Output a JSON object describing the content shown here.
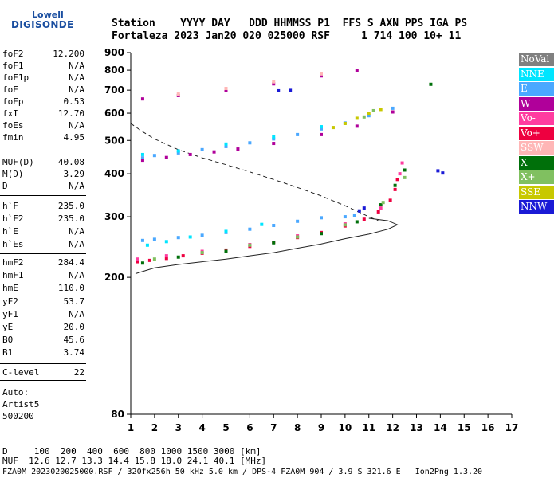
{
  "logo": {
    "line1": "Lowell",
    "line2": "DIGISONDE"
  },
  "header": {
    "line1": "Station    YYYY DAY   DDD HHMMSS P1  FFS S AXN PPS IGA PS",
    "line2": "Fortaleza 2023 Jan20 020 025000 RSF     1 714 100 10+ 11"
  },
  "params_group1": [
    {
      "label": "foF2",
      "value": "12.200"
    },
    {
      "label": "foF1",
      "value": "N/A"
    },
    {
      "label": "foF1p",
      "value": "N/A"
    },
    {
      "label": "foE",
      "value": "N/A"
    },
    {
      "label": "foEp",
      "value": "0.53"
    },
    {
      "label": "fxI",
      "value": "12.70"
    },
    {
      "label": "foEs",
      "value": "N/A"
    },
    {
      "label": "fmin",
      "value": "4.95"
    }
  ],
  "params_group2": [
    {
      "label": "MUF(D)",
      "value": "40.08"
    },
    {
      "label": "M(D)",
      "value": "3.29"
    },
    {
      "label": "D",
      "value": "N/A"
    }
  ],
  "params_group3": [
    {
      "label": "h`F",
      "value": "235.0"
    },
    {
      "label": "h`F2",
      "value": "235.0"
    },
    {
      "label": "h`E",
      "value": "N/A"
    },
    {
      "label": "h`Es",
      "value": "N/A"
    }
  ],
  "params_group4": [
    {
      "label": "hmF2",
      "value": "284.4"
    },
    {
      "label": "hmF1",
      "value": "N/A"
    },
    {
      "label": "hmE",
      "value": "110.0"
    },
    {
      "label": "yF2",
      "value": "53.7"
    },
    {
      "label": "yF1",
      "value": "N/A"
    },
    {
      "label": "yE",
      "value": "20.0"
    },
    {
      "label": "B0",
      "value": "45.6"
    },
    {
      "label": "B1",
      "value": "3.74"
    }
  ],
  "params_group5": [
    {
      "label": "C-level",
      "value": "22"
    }
  ],
  "autoscaling": {
    "line1": "Auto:",
    "line2": "Artist5",
    "line3": "500200"
  },
  "legend": [
    {
      "label": "NoVal",
      "bg": "#808080",
      "fg": "#ffffff"
    },
    {
      "label": "NNE",
      "bg": "#00e5ff",
      "fg": "#ffffff"
    },
    {
      "label": "E",
      "bg": "#4aa8ff",
      "fg": "#ffffff"
    },
    {
      "label": "W",
      "bg": "#b0009a",
      "fg": "#ffffff"
    },
    {
      "label": "Vo-",
      "bg": "#ff3ca0",
      "fg": "#ffffff"
    },
    {
      "label": "Vo+",
      "bg": "#ee0040",
      "fg": "#ffffff"
    },
    {
      "label": "SSW",
      "bg": "#ffb6b6",
      "fg": "#ffffff"
    },
    {
      "label": "X-",
      "bg": "#00700a",
      "fg": "#ffffff"
    },
    {
      "label": "X+",
      "bg": "#80c060",
      "fg": "#ffffff"
    },
    {
      "label": "SSE",
      "bg": "#c8c800",
      "fg": "#ffffff"
    },
    {
      "label": "NNW",
      "bg": "#1a1ad6",
      "fg": "#ffffff"
    }
  ],
  "footer": {
    "line1": "D     100  200  400  600  800 1000 1500 3000 [km]",
    "line2": "MUF  12.6 12.7 13.3 14.4 15.8 18.0 24.1 40.1 [MHz]",
    "line3": "FZA0M_2023020025000.RSF / 320fx256h 50 kHz 5.0 km / DPS-4 FZA0M 904 / 3.9 S 321.6 E   Ion2Png 1.3.20"
  },
  "chart_data": {
    "type": "scatter",
    "title": "",
    "xlabel": "",
    "ylabel": "",
    "xlim": [
      1,
      17
    ],
    "ylim": [
      80,
      900
    ],
    "x_ticks": [
      1,
      2,
      3,
      4,
      5,
      6,
      7,
      8,
      9,
      10,
      11,
      12,
      13,
      14,
      15,
      16,
      17
    ],
    "y_ticks": [
      80,
      200,
      300,
      400,
      500,
      600,
      700,
      800,
      900
    ],
    "y_scale": "log",
    "series": [
      {
        "color": "#ee0040",
        "points": [
          [
            1.3,
            222
          ],
          [
            1.8,
            224
          ],
          [
            2.5,
            227
          ],
          [
            3.2,
            231
          ],
          [
            4,
            235
          ],
          [
            5,
            240
          ],
          [
            6,
            246
          ],
          [
            7,
            253
          ],
          [
            8,
            261
          ],
          [
            9,
            270
          ],
          [
            10,
            282
          ],
          [
            10.8,
            295
          ],
          [
            11.4,
            310
          ],
          [
            11.9,
            335
          ],
          [
            12.1,
            360
          ],
          [
            12.2,
            385
          ]
        ]
      },
      {
        "color": "#ff3ca0",
        "points": [
          [
            1.3,
            226
          ],
          [
            2.5,
            231
          ],
          [
            4,
            238
          ],
          [
            6,
            249
          ],
          [
            8,
            264
          ],
          [
            10,
            286
          ],
          [
            11.5,
            318
          ],
          [
            12.3,
            400
          ],
          [
            12.4,
            430
          ]
        ]
      },
      {
        "color": "#00700a",
        "points": [
          [
            1.5,
            220
          ],
          [
            3,
            229
          ],
          [
            5,
            238
          ],
          [
            7,
            252
          ],
          [
            9,
            268
          ],
          [
            10.5,
            290
          ],
          [
            11.5,
            325
          ],
          [
            12.1,
            370
          ],
          [
            12.5,
            410
          ],
          [
            13.6,
            728
          ]
        ]
      },
      {
        "color": "#80c060",
        "points": [
          [
            2,
            226
          ],
          [
            4,
            236
          ],
          [
            6,
            248
          ],
          [
            8,
            262
          ],
          [
            10,
            284
          ],
          [
            11.6,
            330
          ],
          [
            12.5,
            390
          ],
          [
            10.8,
            585
          ],
          [
            11.2,
            610
          ]
        ]
      },
      {
        "color": "#4aa8ff",
        "points": [
          [
            1.5,
            256
          ],
          [
            2,
            258
          ],
          [
            3,
            261
          ],
          [
            4,
            265
          ],
          [
            5,
            270
          ],
          [
            6,
            276
          ],
          [
            7,
            283
          ],
          [
            8,
            291
          ],
          [
            9,
            298
          ],
          [
            10,
            300
          ],
          [
            10.4,
            302
          ],
          [
            1.5,
            445
          ],
          [
            2,
            452
          ],
          [
            3,
            460
          ],
          [
            4,
            470
          ],
          [
            5,
            480
          ],
          [
            6,
            492
          ],
          [
            7,
            505
          ],
          [
            8,
            520
          ],
          [
            9,
            540
          ],
          [
            10,
            562
          ],
          [
            11,
            590
          ],
          [
            12,
            620
          ]
        ]
      },
      {
        "color": "#00e5ff",
        "points": [
          [
            1.7,
            248
          ],
          [
            2.5,
            254
          ],
          [
            3.5,
            262
          ],
          [
            5,
            272
          ],
          [
            6.5,
            285
          ],
          [
            1.5,
            455
          ],
          [
            3,
            466
          ],
          [
            5,
            488
          ],
          [
            7,
            512
          ],
          [
            9,
            548
          ]
        ]
      },
      {
        "color": "#b0009a",
        "points": [
          [
            1.5,
            438
          ],
          [
            2.5,
            446
          ],
          [
            3.5,
            455
          ],
          [
            4.5,
            463
          ],
          [
            5.5,
            472
          ],
          [
            7,
            490
          ],
          [
            9,
            520
          ],
          [
            10.5,
            550
          ],
          [
            12,
            605
          ],
          [
            1.5,
            660
          ],
          [
            3,
            675
          ],
          [
            5,
            700
          ],
          [
            7,
            730
          ],
          [
            9,
            770
          ],
          [
            10.5,
            800
          ]
        ]
      },
      {
        "color": "#c8c800",
        "points": [
          [
            9.5,
            545
          ],
          [
            10,
            560
          ],
          [
            10.5,
            580
          ],
          [
            11,
            600
          ],
          [
            11.5,
            615
          ]
        ]
      },
      {
        "color": "#1a1ad6",
        "points": [
          [
            7.2,
            697
          ],
          [
            7.7,
            699
          ],
          [
            10.6,
            312
          ],
          [
            10.8,
            318
          ],
          [
            13.9,
            408
          ],
          [
            14.1,
            402
          ]
        ]
      },
      {
        "color": "#ffb6b6",
        "points": [
          [
            3,
            682
          ],
          [
            5,
            708
          ],
          [
            7,
            740
          ],
          [
            9,
            780
          ]
        ]
      }
    ],
    "profile_solid": [
      [
        1.2,
        205
      ],
      [
        2,
        213
      ],
      [
        3,
        218
      ],
      [
        4,
        222
      ],
      [
        5,
        226
      ],
      [
        6,
        231
      ],
      [
        7,
        236
      ],
      [
        8,
        243
      ],
      [
        9,
        250
      ],
      [
        10,
        259
      ],
      [
        11,
        267
      ],
      [
        11.8,
        276
      ],
      [
        12.2,
        284.4
      ],
      [
        11.8,
        292
      ],
      [
        11,
        297
      ]
    ],
    "profile_dashed": [
      [
        1,
        560
      ],
      [
        1.5,
        530
      ],
      [
        2,
        505
      ],
      [
        3,
        470
      ],
      [
        4,
        445
      ],
      [
        5,
        425
      ],
      [
        6,
        405
      ],
      [
        7,
        385
      ],
      [
        8,
        365
      ],
      [
        9,
        345
      ],
      [
        10,
        323
      ],
      [
        11,
        300
      ],
      [
        11.4,
        292
      ]
    ]
  }
}
